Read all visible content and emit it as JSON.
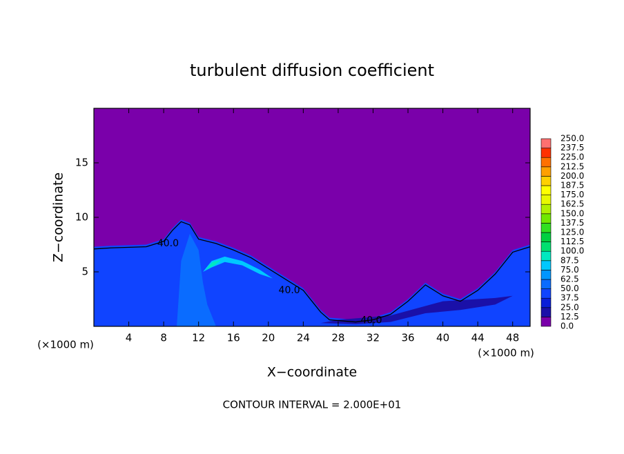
{
  "chart_data": {
    "type": "contour",
    "title": "turbulent diffusion coefficient",
    "xlabel": "X−coordinate",
    "ylabel": "Z−coordinate",
    "x_unit_left": "(×1000 m)",
    "x_unit_right": "(×1000 m)",
    "annotation": "CONTOUR INTERVAL = 2.000E+01",
    "xlim": [
      0,
      50
    ],
    "ylim": [
      0,
      20
    ],
    "xticks": [
      4,
      8,
      12,
      16,
      20,
      24,
      28,
      32,
      36,
      40,
      44,
      48
    ],
    "yticks": [
      5,
      10,
      15
    ],
    "colorbar": {
      "ticks": [
        {
          "value": 0,
          "label": "0.0"
        },
        {
          "value": 12.5,
          "label": "12.5"
        },
        {
          "value": 25,
          "label": "25.0"
        },
        {
          "value": 37.5,
          "label": "37.5"
        },
        {
          "value": 50,
          "label": "50.0"
        },
        {
          "value": 62.5,
          "label": "62.5"
        },
        {
          "value": 75,
          "label": "75.0"
        },
        {
          "value": 87.5,
          "label": "87.5"
        },
        {
          "value": 100,
          "label": "100.0"
        },
        {
          "value": 112.5,
          "label": "112.5"
        },
        {
          "value": 125,
          "label": "125.0"
        },
        {
          "value": 137.5,
          "label": "137.5"
        },
        {
          "value": 150,
          "label": "150.0"
        },
        {
          "value": 162.5,
          "label": "162.5"
        },
        {
          "value": 175,
          "label": "175.0"
        },
        {
          "value": 187.5,
          "label": "187.5"
        },
        {
          "value": 200,
          "label": "200.0"
        },
        {
          "value": 212.5,
          "label": "212.5"
        },
        {
          "value": 225,
          "label": "225.0"
        },
        {
          "value": 237.5,
          "label": "237.5"
        },
        {
          "value": 250,
          "label": "250.0"
        }
      ],
      "colors": [
        "#7a00aa",
        "#1a10a8",
        "#0a1ed8",
        "#1044ff",
        "#0a6cff",
        "#0096ff",
        "#00c8ff",
        "#00e8c0",
        "#00e070",
        "#00d040",
        "#30e020",
        "#70e800",
        "#b0f000",
        "#e8f800",
        "#ffff00",
        "#ffd000",
        "#ffa000",
        "#ff7000",
        "#ff3000",
        "#ff7070"
      ]
    },
    "fills": [
      {
        "level": 0,
        "x": [
          0,
          50,
          50,
          0
        ],
        "y": [
          0,
          0,
          20,
          20
        ]
      },
      {
        "level": 37.5,
        "x": [
          0,
          2,
          6,
          8,
          9,
          10,
          11,
          12,
          14,
          16,
          18,
          20,
          22,
          24,
          25,
          26,
          27,
          30,
          32,
          34,
          36,
          38,
          40,
          42,
          44,
          46,
          48,
          50,
          50,
          0
        ],
        "y": [
          7.3,
          7.4,
          7.5,
          8,
          9,
          9.8,
          9.5,
          8.2,
          7.8,
          7.2,
          6.5,
          5.5,
          4.5,
          3.5,
          2.5,
          1.5,
          0.8,
          0.6,
          0.8,
          1.3,
          2.5,
          4,
          3,
          2.5,
          3.5,
          5,
          7,
          7.5,
          0,
          0
        ]
      },
      {
        "level": 12.5,
        "x": [
          26,
          30,
          34,
          38,
          42,
          46,
          48,
          46,
          40,
          34,
          28
        ],
        "y": [
          0.3,
          0.2,
          0.4,
          1.2,
          1.5,
          2,
          2.8,
          2.6,
          2.3,
          1.0,
          0.6
        ]
      },
      {
        "level": 50,
        "x": [
          9.5,
          10,
          11,
          12,
          12.5,
          13,
          14
        ],
        "y": [
          0,
          6,
          8.5,
          7,
          4,
          2,
          0
        ]
      },
      {
        "level": 75,
        "x": [
          12.5,
          13.5,
          15,
          17,
          19,
          20.5,
          19,
          17,
          15,
          13.5
        ],
        "y": [
          5,
          6,
          6.4,
          6,
          5.2,
          4.4,
          4.8,
          5.6,
          5.9,
          5.4
        ]
      },
      {
        "level": 87.5,
        "x": [
          12.8,
          13.6,
          14.6,
          13.8
        ],
        "y": [
          5.2,
          5.9,
          6.1,
          5.6
        ]
      }
    ],
    "contours": [
      {
        "level": 40,
        "x": [
          0,
          2,
          6,
          8,
          9,
          10,
          11,
          12,
          14,
          16,
          18,
          20,
          22,
          24,
          25,
          26,
          27,
          30,
          32,
          34,
          36,
          38,
          40,
          42,
          44,
          46,
          48,
          50
        ],
        "y": [
          7.1,
          7.2,
          7.3,
          7.8,
          8.8,
          9.6,
          9.3,
          8.0,
          7.6,
          7.0,
          6.3,
          5.3,
          4.3,
          3.3,
          2.3,
          1.3,
          0.6,
          0.4,
          0.6,
          1.1,
          2.3,
          3.8,
          2.8,
          2.3,
          3.3,
          4.8,
          6.8,
          7.3
        ]
      }
    ],
    "contour_labels": [
      {
        "level": 40,
        "label": "40.0",
        "x": 8.5,
        "y": 7.6
      },
      {
        "level": 40,
        "label": "40.0",
        "x": 22.4,
        "y": 3.3
      },
      {
        "level": 40,
        "label": "40.0",
        "x": 31.8,
        "y": 0.55
      }
    ]
  }
}
